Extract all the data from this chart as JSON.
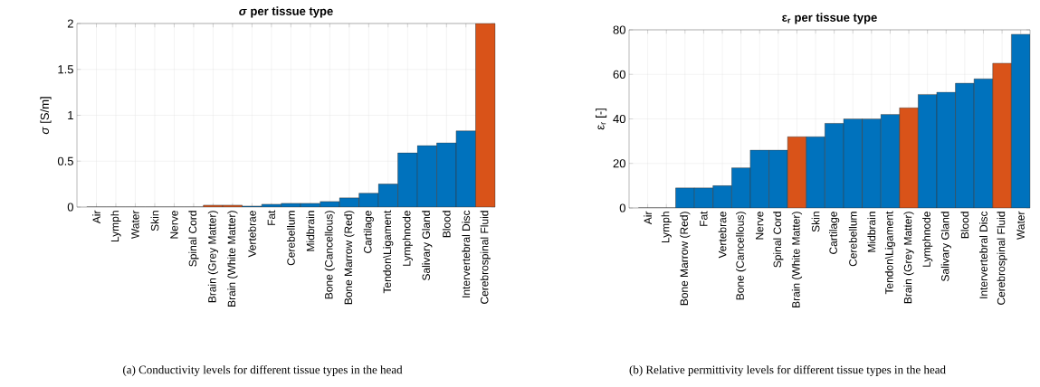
{
  "chart_data": [
    {
      "type": "bar",
      "title": "*σ* per tissue type",
      "ylabel": "*σ* [S/m]",
      "categories": [
        "Air",
        "Lymph",
        "Water",
        "Skin",
        "Nerve",
        "Spinal Cord",
        "Brain (Grey Matter)",
        "Brain (White Matter)",
        "Vertebrae",
        "Fat",
        "Cerebellum",
        "Midbrain",
        "Bone (Cancellous)",
        "Bone Marrow (Red)",
        "Cartilage",
        "Tendon\\Ligament",
        "Lymphnode",
        "Salivary Gland",
        "Blood",
        "Intervertebral Disc",
        "Cerebrospinal Fluid"
      ],
      "values": [
        0,
        0,
        0,
        0,
        0,
        0,
        0.02,
        0.02,
        0.01,
        0.03,
        0.04,
        0.04,
        0.06,
        0.1,
        0.15,
        0.25,
        0.59,
        0.67,
        0.7,
        0.83,
        2.0
      ],
      "colors": [
        "#0072bd",
        "#0072bd",
        "#0072bd",
        "#0072bd",
        "#0072bd",
        "#0072bd",
        "#d95319",
        "#d95319",
        "#0072bd",
        "#0072bd",
        "#0072bd",
        "#0072bd",
        "#0072bd",
        "#0072bd",
        "#0072bd",
        "#0072bd",
        "#0072bd",
        "#0072bd",
        "#0072bd",
        "#0072bd",
        "#d95319"
      ],
      "ylim": [
        0,
        2
      ],
      "yticks": [
        0,
        0.5,
        1,
        1.5,
        2
      ],
      "grid": true,
      "annotations": [
        "(a) Conductivity levels for different tissue types in the head"
      ]
    },
    {
      "type": "bar",
      "title": "ε$_{r}$ per tissue type",
      "ylabel": "ε$_{r}$ [-]",
      "categories": [
        "Air",
        "Lymph",
        "Bone Marrow (Red)",
        "Fat",
        "Vertebrae",
        "Bone (Cancellous)",
        "Nerve",
        "Spinal Cord",
        "Brain (White Matter)",
        "Skin",
        "Cartilage",
        "Cerebellum",
        "Midbrain",
        "Tendon\\Ligament",
        "Brain (Grey Matter)",
        "Lymphnode",
        "Salivary Gland",
        "Blood",
        "Intervertebral Disc",
        "Cerebrospinal Fluid",
        "Water"
      ],
      "values": [
        0,
        0,
        9,
        9,
        10,
        18,
        26,
        26,
        32,
        32,
        38,
        40,
        40,
        42,
        45,
        51,
        52,
        56,
        58,
        65,
        78
      ],
      "colors": [
        "#0072bd",
        "#0072bd",
        "#0072bd",
        "#0072bd",
        "#0072bd",
        "#0072bd",
        "#0072bd",
        "#0072bd",
        "#d95319",
        "#0072bd",
        "#0072bd",
        "#0072bd",
        "#0072bd",
        "#0072bd",
        "#d95319",
        "#0072bd",
        "#0072bd",
        "#0072bd",
        "#0072bd",
        "#d95319",
        "#0072bd"
      ],
      "ylim": [
        0,
        80
      ],
      "yticks": [
        0,
        20,
        40,
        60,
        80
      ],
      "grid": true,
      "annotations": [
        "(b) Relative permittivity levels for different tissue types in the head"
      ]
    }
  ]
}
